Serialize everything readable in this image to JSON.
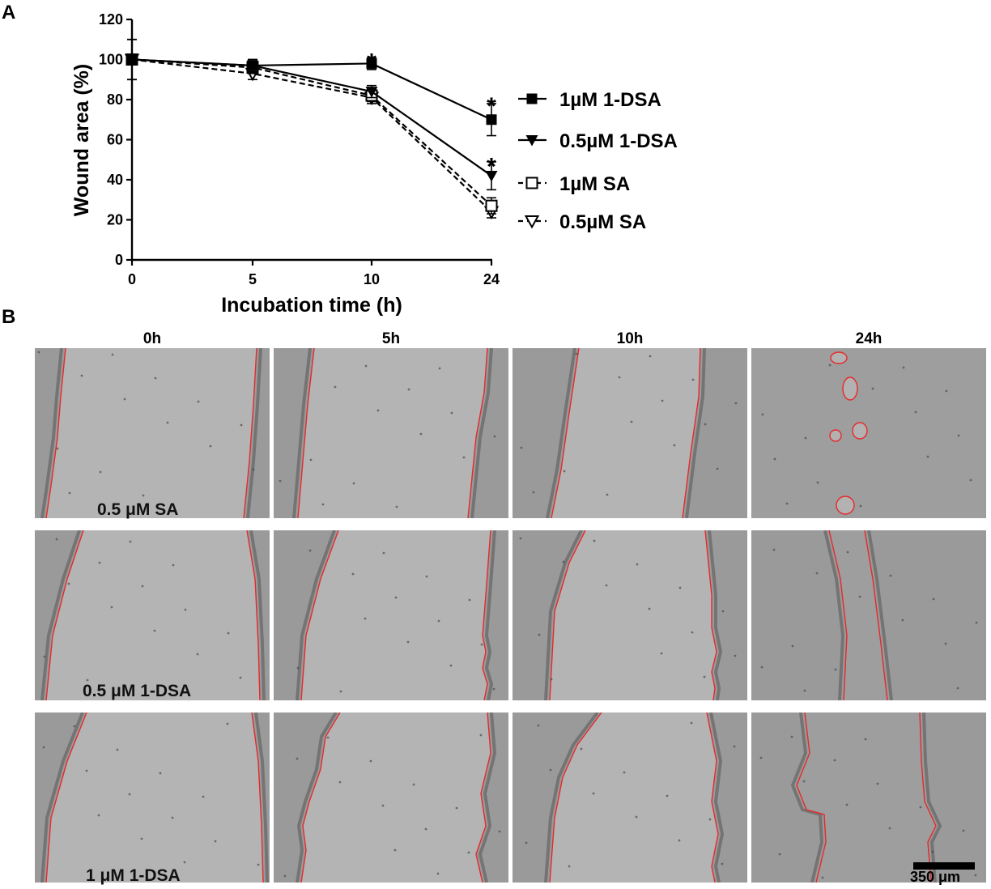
{
  "panel_a_letter": "A",
  "panel_b_letter": "B",
  "chart_data": {
    "type": "line",
    "xlabel": "Incubation time (h)",
    "ylabel": "Wound area (%)",
    "categories": [
      "0",
      "5",
      "10",
      "24"
    ],
    "ylim": [
      0,
      120
    ],
    "yticks": [
      0,
      20,
      40,
      60,
      80,
      100,
      120
    ],
    "grid": false,
    "legend_position": "right",
    "series": [
      {
        "name": "1µM 1-DSA",
        "marker": "filled-square",
        "line": "solid",
        "values": [
          100,
          97,
          98,
          70
        ],
        "errors": [
          10,
          3,
          3,
          8
        ]
      },
      {
        "name": "0.5µM 1-DSA",
        "marker": "filled-triangle-down",
        "line": "solid",
        "values": [
          100,
          97,
          84,
          42
        ],
        "errors": [
          10,
          3,
          3,
          7
        ]
      },
      {
        "name": "1µM SA",
        "marker": "open-square",
        "line": "dashed",
        "values": [
          100,
          96,
          82,
          27
        ],
        "errors": [
          10,
          3,
          3,
          4
        ]
      },
      {
        "name": "0.5µM SA",
        "marker": "open-triangle-down",
        "line": "dashed",
        "values": [
          100,
          93,
          81,
          24
        ],
        "errors": [
          10,
          3,
          3,
          3
        ]
      }
    ],
    "annotations": [
      {
        "text": "*",
        "category": "10",
        "y": 102
      },
      {
        "text": "*",
        "category": "24",
        "y": 80
      },
      {
        "text": "*",
        "category": "24",
        "y": 50
      }
    ]
  },
  "micrographs": {
    "columns": [
      "0h",
      "5h",
      "10h",
      "24h"
    ],
    "rows": [
      "0.5 μM SA",
      "0.5 μM 1-DSA",
      "1 μM 1-DSA"
    ],
    "boundary_color": "#e8282a",
    "scale_bar": "350 μm"
  }
}
